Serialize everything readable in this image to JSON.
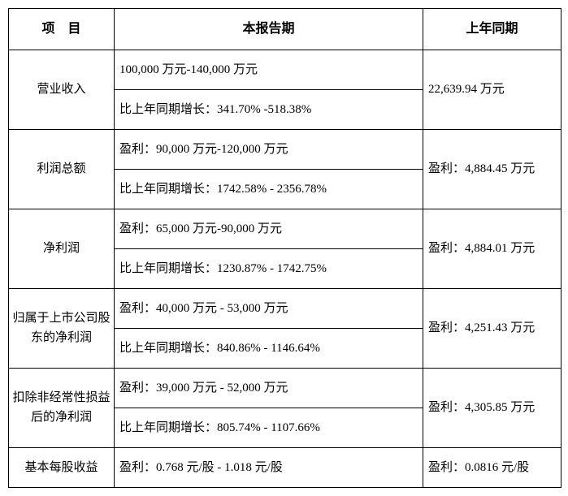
{
  "headers": {
    "item": "项　目",
    "current": "本报告期",
    "prior": "上年同期"
  },
  "rows": [
    {
      "label": "营业收入",
      "value": "100,000 万元-140,000 万元",
      "growth": "比上年同期增长：341.70% -518.38%",
      "prior": "22,639.94 万元"
    },
    {
      "label": "利润总额",
      "value": "盈利：90,000 万元-120,000 万元",
      "growth": "比上年同期增长：1742.58% - 2356.78%",
      "prior": "盈利：4,884.45 万元"
    },
    {
      "label": "净利润",
      "value": "盈利：65,000 万元-90,000 万元",
      "growth": "比上年同期增长：1230.87% - 1742.75%",
      "prior": "盈利：4,884.01 万元"
    },
    {
      "label": "归属于上市公司股东的净利润",
      "value": "盈利：40,000 万元 - 53,000 万元",
      "growth": "比上年同期增长：840.86% - 1146.64%",
      "prior": "盈利：4,251.43 万元"
    },
    {
      "label": "扣除非经常性损益后的净利润",
      "value": "盈利：39,000 万元 - 52,000 万元",
      "growth": "比上年同期增长：805.74% - 1107.66%",
      "prior": "盈利：4,305.85 万元"
    }
  ],
  "eps": {
    "label": "基本每股收益",
    "value": "盈利：0.768 元/股 - 1.018 元/股",
    "prior": "盈利：0.0816 元/股"
  }
}
